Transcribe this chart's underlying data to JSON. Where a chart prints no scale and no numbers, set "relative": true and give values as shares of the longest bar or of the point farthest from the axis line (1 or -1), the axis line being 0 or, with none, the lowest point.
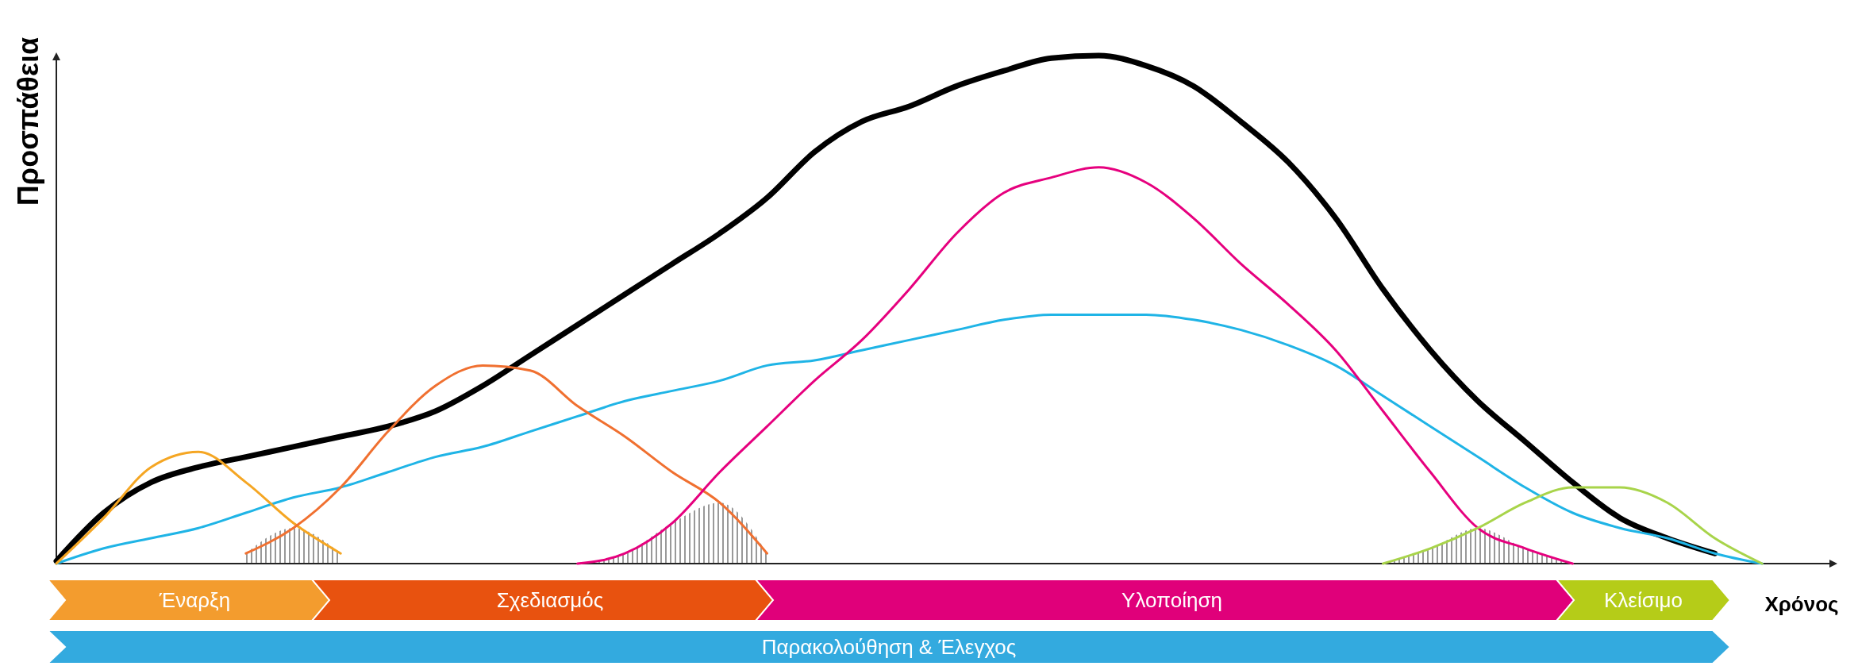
{
  "chart_data": {
    "type": "line",
    "relative": true,
    "xlabel": "Χρόνος",
    "ylabel": "Προσπάθεια",
    "line_style": "solid",
    "categories": [
      null,
      null,
      null,
      null,
      null,
      null,
      null,
      null,
      null,
      null,
      null,
      null,
      null,
      null,
      null,
      null,
      null,
      null,
      null,
      null,
      null,
      null,
      null,
      null,
      null,
      null,
      null,
      null,
      null,
      null,
      null,
      null,
      null,
      null,
      null,
      null,
      null
    ],
    "series": [
      {
        "color": "#000000",
        "values": [
          0.005,
          0.1,
          0.16,
          0.19,
          0.21,
          0.23,
          0.25,
          0.27,
          0.3,
          0.35,
          0.41,
          0.47,
          0.53,
          0.59,
          0.65,
          0.72,
          0.81,
          0.87,
          0.9,
          0.94,
          0.97,
          0.995,
          1,
          0.98,
          0.94,
          0.87,
          0.79,
          0.68,
          0.54,
          0.42,
          0.32,
          0.24,
          0.16,
          0.09,
          0.05,
          0.02,
          null
        ]
      },
      {
        "color": "#1fb4e6",
        "values": [
          0,
          0.03,
          0.05,
          0.07,
          0.1,
          0.13,
          0.15,
          0.18,
          0.21,
          0.23,
          0.26,
          0.29,
          0.32,
          0.34,
          0.36,
          0.39,
          0.4,
          0.42,
          0.44,
          0.46,
          0.48,
          0.49,
          0.49,
          0.49,
          0.48,
          0.46,
          0.43,
          0.39,
          0.33,
          0.27,
          0.21,
          0.15,
          0.1,
          0.07,
          0.05,
          0.02,
          0
        ]
      },
      {
        "color": "#f5a623",
        "values": [
          0,
          0.09,
          0.19,
          0.22,
          0.16,
          0.08,
          0.02,
          null,
          null,
          null,
          null,
          null,
          null,
          null,
          null,
          null,
          null,
          null,
          null,
          null,
          null,
          null,
          null,
          null,
          null,
          null,
          null,
          null,
          null,
          null,
          null,
          null,
          null,
          null,
          null,
          null,
          null
        ]
      },
      {
        "color": "#f07030",
        "values": [
          null,
          null,
          null,
          null,
          0.02,
          0.07,
          0.15,
          0.26,
          0.35,
          0.39,
          0.38,
          0.31,
          0.25,
          0.18,
          0.12,
          0.02,
          null,
          null,
          null,
          null,
          null,
          null,
          null,
          null,
          null,
          null,
          null,
          null,
          null,
          null,
          null,
          null,
          null,
          null,
          null,
          null,
          null
        ]
      },
      {
        "color": "#e6007e",
        "values": [
          null,
          null,
          null,
          null,
          null,
          null,
          null,
          null,
          null,
          null,
          null,
          0,
          0.02,
          0.08,
          0.18,
          0.27,
          0.36,
          0.44,
          0.54,
          0.65,
          0.73,
          0.76,
          0.78,
          0.75,
          0.68,
          0.59,
          0.51,
          0.42,
          0.3,
          0.18,
          0.07,
          0.03,
          0,
          null,
          null,
          null,
          null
        ]
      },
      {
        "color": "#a8d44a",
        "values": [
          null,
          null,
          null,
          null,
          null,
          null,
          null,
          null,
          null,
          null,
          null,
          null,
          null,
          null,
          null,
          null,
          null,
          null,
          null,
          null,
          null,
          null,
          null,
          null,
          null,
          null,
          null,
          null,
          0,
          0.03,
          0.07,
          0.12,
          0.15,
          0.15,
          0.12,
          0.05,
          0
        ]
      }
    ],
    "annotations": [
      "Έναρξη",
      "Σχεδιασμός",
      "Υλοποίηση",
      "Κλείσιμο",
      "Παρακολούθηση & Έλεγχος"
    ]
  }
}
